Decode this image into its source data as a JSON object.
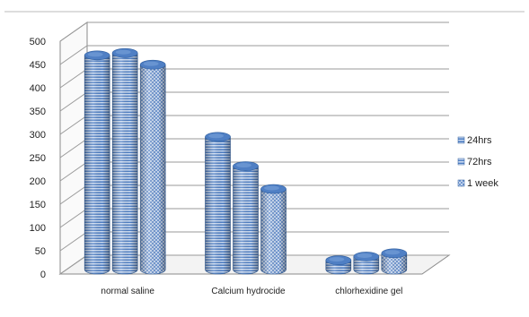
{
  "chart_data": {
    "type": "bar",
    "style": "3d-cylinder",
    "categories": [
      "normal saline",
      "Calcium hydrocide",
      "chlorhexidine gel"
    ],
    "series": [
      {
        "name": "24hrs",
        "values": [
          460,
          285,
          20
        ],
        "pattern": "horizontal-stripes"
      },
      {
        "name": "72hrs",
        "values": [
          465,
          222,
          28
        ],
        "pattern": "horizontal-lines"
      },
      {
        "name": "1 week",
        "values": [
          440,
          173,
          35
        ],
        "pattern": "crosshatch"
      }
    ],
    "yticks": [
      "0",
      "50",
      "100",
      "150",
      "200",
      "250",
      "300",
      "350",
      "400",
      "450",
      "500"
    ],
    "ylim": [
      0,
      500
    ],
    "grid": true,
    "legend_position": "right",
    "colors": {
      "bar_base": "#4f7fc4",
      "bar_light": "#cddcf2",
      "bar_dark": "#2f5e9e",
      "grid": "#9a9a9a",
      "wall": "#ffffff",
      "top_rule": "#bbbbbb"
    }
  }
}
